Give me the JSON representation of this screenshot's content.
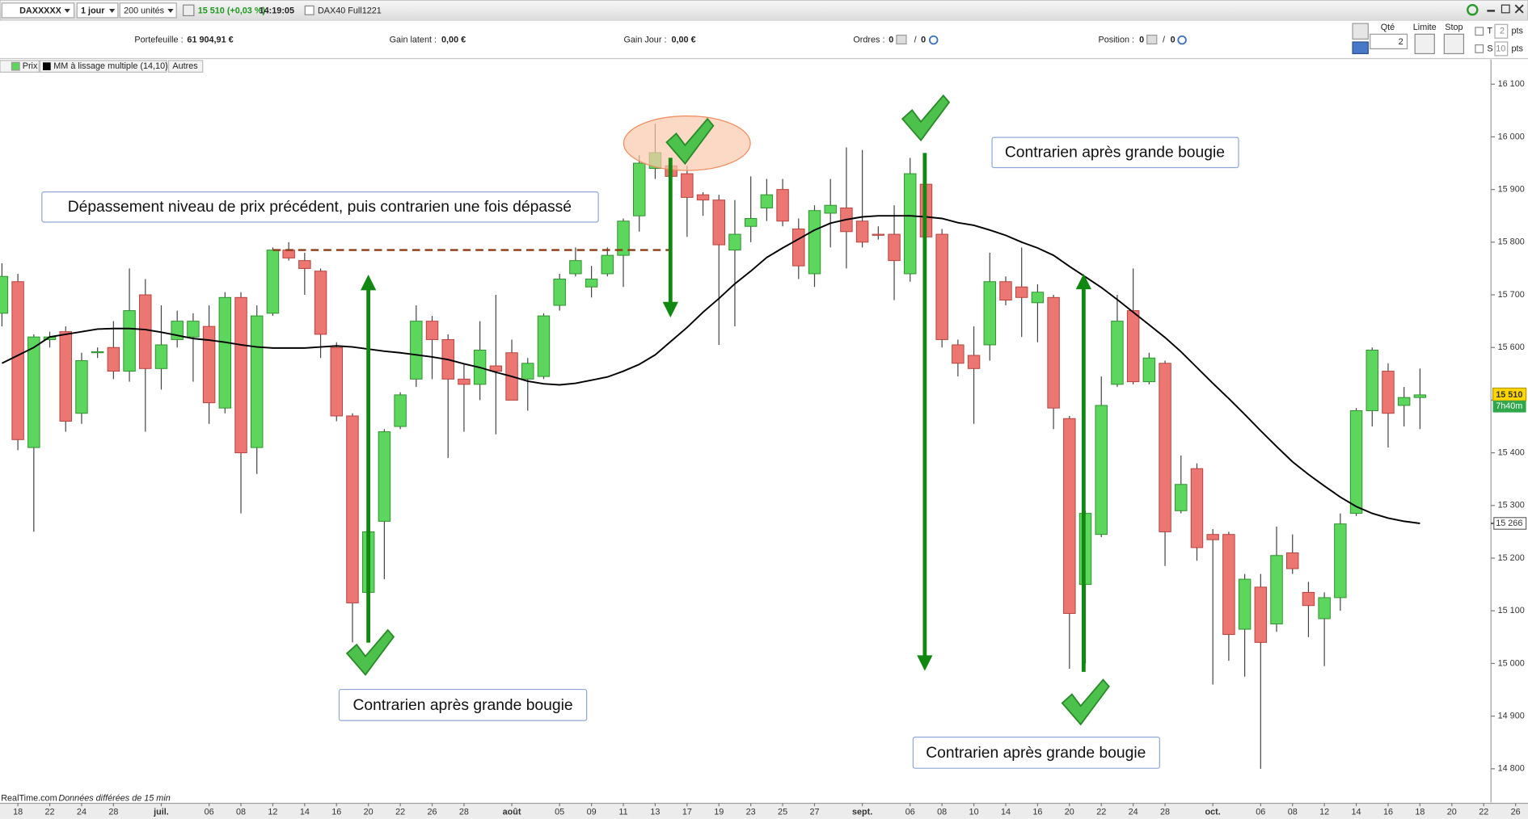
{
  "toolbar": {
    "symbol": "DAXXXXX",
    "period": "1 jour",
    "units": "200 unités",
    "quote": "15 510 (+0,03 %)",
    "time": "14:19:05",
    "instrument": "DAX40 Full1221"
  },
  "account": {
    "portfolio_label": "Portefeuille :",
    "portfolio_value": "61 904,91 €",
    "latent_label": "Gain latent :",
    "latent_value": "0,00 €",
    "day_label": "Gain Jour :",
    "day_value": "0,00 €",
    "orders_label": "Ordres :",
    "orders_a": "0",
    "orders_sep": "/",
    "orders_b": "0",
    "position_label": "Position :",
    "position_a": "0",
    "position_sep": "/",
    "position_b": "0"
  },
  "order_panel": {
    "qty_label": "Qté",
    "qty": "2",
    "limit_label": "Limite",
    "stop_label": "Stop",
    "t_label": "T",
    "t_value": "2",
    "t_unit": "pts",
    "s_label": "S",
    "s_value": "10",
    "s_unit": "pts"
  },
  "legend_tabs": {
    "others": "Autres"
  },
  "footer": {
    "source": "RealTime.com",
    "delay": "Données différées de 15 min"
  },
  "annotations": [
    "Dépassement niveau de prix précédent, puis contrarien une fois dépassé",
    "Contrarien après grande bougie",
    "Contrarien après grande bougie",
    "Contrarien après grande bougie"
  ],
  "chart_data": {
    "type": "candlestick",
    "name": "Prix",
    "up_color": "#5cd65c",
    "down_color": "#ec7671",
    "categories": [
      null,
      "18",
      null,
      "22",
      null,
      "24",
      null,
      "28",
      null,
      null,
      "juil.",
      null,
      null,
      "06",
      null,
      "08",
      null,
      "12",
      null,
      "14",
      null,
      "16",
      null,
      "20",
      null,
      "22",
      null,
      "26",
      null,
      "28",
      null,
      null,
      "août",
      null,
      null,
      "05",
      null,
      "09",
      null,
      "11",
      null,
      "13",
      null,
      "17",
      null,
      "19",
      null,
      "23",
      null,
      "25",
      null,
      "27",
      null,
      null,
      "sept.",
      null,
      null,
      "06",
      null,
      "08",
      null,
      "10",
      null,
      "14",
      null,
      "16",
      null,
      "20",
      null,
      "22",
      null,
      "24",
      null,
      "28",
      null,
      null,
      "oct.",
      null,
      null,
      "06",
      null,
      "08",
      null,
      "12",
      null,
      "14",
      null,
      "16",
      null,
      "18",
      null,
      "20",
      null,
      "22",
      null,
      "26"
    ],
    "open": [
      15665,
      15725,
      15410,
      15615,
      15630,
      15475,
      15590,
      15600,
      15555,
      15700,
      15560,
      15615,
      15620,
      15640,
      15485,
      15695,
      15410,
      15665,
      15785,
      15765,
      15745,
      15600,
      15470,
      15135,
      15270,
      15450,
      15540,
      15650,
      15615,
      15540,
      15530,
      15565,
      15590,
      15540,
      15545,
      15680,
      15740,
      15715,
      15740,
      15775,
      15850,
      15940,
      15945,
      15930,
      15890,
      15880,
      15785,
      15830,
      15865,
      15900,
      15825,
      15740,
      15855,
      15865,
      15840,
      15815,
      15815,
      15740,
      15910,
      15815,
      15605,
      15585,
      15605,
      15725,
      15715,
      15685,
      15695,
      15465,
      15150,
      15245,
      15530,
      15670,
      15535,
      15570,
      15290,
      15370,
      15245,
      15245,
      15065,
      15145,
      15075,
      15210,
      15135,
      15085,
      15125,
      15285,
      15480,
      15555,
      15490,
      15505,
      null,
      null,
      null,
      null,
      null,
      null
    ],
    "high": [
      15760,
      15740,
      15625,
      15630,
      15640,
      15590,
      15600,
      15650,
      15750,
      15730,
      15680,
      15670,
      15665,
      15680,
      15705,
      15705,
      15680,
      15790,
      15800,
      15780,
      15750,
      15610,
      15475,
      15255,
      15445,
      15515,
      15680,
      15660,
      15625,
      15570,
      15650,
      15700,
      15615,
      15580,
      15665,
      15740,
      15790,
      15755,
      15790,
      15845,
      15965,
      16025,
      15960,
      15945,
      15895,
      15890,
      15880,
      15925,
      15920,
      15920,
      15845,
      15870,
      15920,
      15980,
      15975,
      15830,
      15870,
      15960,
      15945,
      15825,
      15615,
      15640,
      15780,
      15735,
      15790,
      15720,
      15700,
      15470,
      15290,
      15545,
      15700,
      15750,
      15590,
      15575,
      15395,
      15380,
      15255,
      15250,
      15170,
      15170,
      15260,
      15245,
      15155,
      15135,
      15285,
      15485,
      15600,
      15570,
      15525,
      15560,
      null,
      null,
      null,
      null,
      null,
      null
    ],
    "low": [
      15640,
      15405,
      15250,
      15600,
      15440,
      15455,
      15580,
      15540,
      15535,
      15440,
      15520,
      15600,
      15535,
      15455,
      15475,
      15285,
      15360,
      15660,
      15765,
      15700,
      15580,
      15460,
      15040,
      15090,
      15160,
      15445,
      15525,
      15540,
      15390,
      15440,
      15500,
      15435,
      15500,
      15480,
      15540,
      15670,
      15735,
      15695,
      15735,
      15715,
      15820,
      15920,
      15910,
      15810,
      15850,
      15605,
      15640,
      15800,
      15840,
      15830,
      15730,
      15715,
      15790,
      15750,
      15790,
      15805,
      15690,
      15725,
      15795,
      15600,
      15545,
      15455,
      15575,
      15680,
      15620,
      15610,
      15445,
      14990,
      15000,
      15240,
      15525,
      15530,
      15530,
      15185,
      15285,
      15195,
      14960,
      15005,
      14975,
      14800,
      15060,
      15170,
      15050,
      14995,
      15100,
      15280,
      15450,
      15410,
      15450,
      15445,
      null,
      null,
      null,
      null,
      null,
      null
    ],
    "close": [
      15735,
      15425,
      15620,
      15620,
      15460,
      15575,
      15592,
      15555,
      15670,
      15560,
      15605,
      15650,
      15650,
      15495,
      15695,
      15400,
      15660,
      15785,
      15770,
      15750,
      15625,
      15470,
      15115,
      15250,
      15440,
      15510,
      15650,
      15615,
      15540,
      15530,
      15595,
      15555,
      15500,
      15570,
      15660,
      15730,
      15765,
      15730,
      15775,
      15840,
      15950,
      15970,
      15925,
      15885,
      15880,
      15795,
      15815,
      15845,
      15890,
      15840,
      15755,
      15860,
      15870,
      15820,
      15800,
      15813,
      15765,
      15930,
      15810,
      15615,
      15570,
      15560,
      15725,
      15690,
      15695,
      15705,
      15485,
      15095,
      15285,
      15490,
      15650,
      15535,
      15580,
      15250,
      15340,
      15220,
      15235,
      15055,
      15160,
      15040,
      15205,
      15180,
      15110,
      15125,
      15265,
      15480,
      15595,
      15475,
      15505,
      15510,
      null,
      null,
      null,
      null,
      null,
      null
    ],
    "series": [
      {
        "name": "MM à lissage multiple (14,10)",
        "color": "#000000",
        "values": [
          15570,
          15585,
          15600,
          15620,
          15625,
          15630,
          15635,
          15636,
          15636,
          15634,
          15629,
          15623,
          15617,
          15614,
          15610,
          15605,
          15601,
          15599,
          15599,
          15599,
          15601,
          15603,
          15601,
          15597,
          15593,
          15590,
          15586,
          15582,
          15577,
          15569,
          15562,
          15553,
          15545,
          15536,
          15531,
          15529,
          15532,
          15538,
          15544,
          15555,
          15568,
          15586,
          15612,
          15638,
          15667,
          15693,
          15721,
          15745,
          15771,
          15789,
          15806,
          15823,
          15836,
          15843,
          15848,
          15850,
          15850,
          15850,
          15848,
          15845,
          15837,
          15832,
          15823,
          15813,
          15800,
          15789,
          15775,
          15754,
          15734,
          15714,
          15691,
          15667,
          15643,
          15619,
          15592,
          15562,
          15532,
          15503,
          15473,
          15442,
          15412,
          15383,
          15359,
          15337,
          15316,
          15298,
          15285,
          15276,
          15270,
          15266,
          null,
          null,
          null,
          null,
          null,
          null
        ]
      }
    ],
    "ylim": [
      14740,
      16145
    ],
    "yticks": [
      {
        "value": 14800,
        "label": "14 800"
      },
      {
        "value": 14900,
        "label": "14 900"
      },
      {
        "value": 15000,
        "label": "15 000"
      },
      {
        "value": 15100,
        "label": "15 100"
      },
      {
        "value": 15200,
        "label": "15 200"
      },
      {
        "value": 15300,
        "label": "15 300"
      },
      {
        "value": 15400,
        "label": "15 400"
      },
      {
        "value": 15500,
        "label": "15 500"
      },
      {
        "value": 15600,
        "label": "15 600"
      },
      {
        "value": 15700,
        "label": "15 700"
      },
      {
        "value": 15800,
        "label": "15 800"
      },
      {
        "value": 15900,
        "label": "15 900"
      },
      {
        "value": 16000,
        "label": "16 000"
      },
      {
        "value": 16100,
        "label": "16 100"
      }
    ],
    "reference_level": 15785,
    "last_price": {
      "value": 15510,
      "label": "15 510"
    },
    "countdown": "7h40m",
    "ma_last": {
      "value": 15266,
      "label": "15 266"
    },
    "grid": false
  }
}
